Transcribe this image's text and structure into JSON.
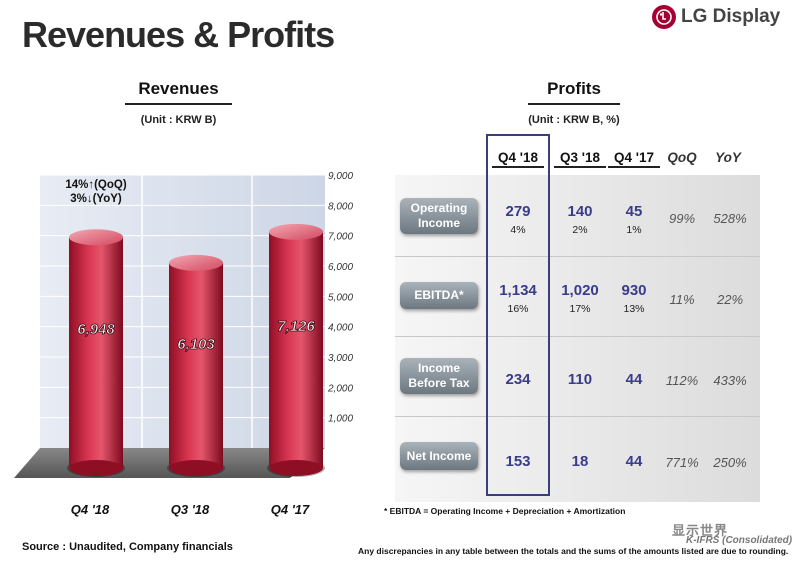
{
  "page": {
    "title": "Revenues & Profits",
    "logo_text": "LG Display",
    "source": "Source : Unaudited, Company financials",
    "watermark": "显示世界",
    "watermark_sub": "K-IFRS (Consolidated)"
  },
  "chart_data": {
    "type": "bar",
    "title": "Revenues",
    "unit": "(Unit : KRW B)",
    "categories": [
      "Q4 '18",
      "Q3 '18",
      "Q4 '17"
    ],
    "values": [
      6948,
      6103,
      7126
    ],
    "value_labels": [
      "6,948",
      "6,103",
      "7,126"
    ],
    "ylim": [
      0,
      9000
    ],
    "yticks": [
      1000,
      2000,
      3000,
      4000,
      5000,
      6000,
      7000,
      8000,
      9000
    ],
    "ytick_labels": [
      "1,000",
      "2,000",
      "3,000",
      "4,000",
      "5,000",
      "6,000",
      "7,000",
      "8,000",
      "9,000"
    ],
    "annotation_lines": [
      "14%↑(QoQ)",
      "3%↓(YoY)"
    ],
    "bar_color": "#c9203c"
  },
  "profits": {
    "title": "Profits",
    "unit": "(Unit : KRW B, %)",
    "columns": [
      "Q4 '18",
      "Q3 '18",
      "Q4 '17",
      "QoQ",
      "YoY"
    ],
    "rows": [
      {
        "label": [
          "Operating",
          "Income"
        ],
        "q4_18": "279",
        "q4_18_pct": "4%",
        "q3_18": "140",
        "q3_18_pct": "2%",
        "q4_17": "45",
        "q4_17_pct": "1%",
        "qoq": "99%",
        "yoy": "528%"
      },
      {
        "label": [
          "EBITDA*"
        ],
        "q4_18": "1,134",
        "q4_18_pct": "16%",
        "q3_18": "1,020",
        "q3_18_pct": "17%",
        "q4_17": "930",
        "q4_17_pct": "13%",
        "qoq": "11%",
        "yoy": "22%"
      },
      {
        "label": [
          "Income",
          "Before Tax"
        ],
        "q4_18": "234",
        "q4_18_pct": "",
        "q3_18": "110",
        "q3_18_pct": "",
        "q4_17": "44",
        "q4_17_pct": "",
        "qoq": "112%",
        "yoy": "433%"
      },
      {
        "label": [
          "Net Income"
        ],
        "q4_18": "153",
        "q4_18_pct": "",
        "q3_18": "18",
        "q3_18_pct": "",
        "q4_17": "44",
        "q4_17_pct": "",
        "qoq": "771%",
        "yoy": "250%"
      }
    ],
    "footnote": "* EBITDA = Operating Income + Depreciation + Amortization",
    "discrepancy_note": "Any discrepancies in any table between the totals and the sums of the amounts listed are due to rounding."
  },
  "colors": {
    "accent": "#a50034",
    "value_text": "#3a3b8a",
    "highlight_border": "#3a3f7a"
  }
}
